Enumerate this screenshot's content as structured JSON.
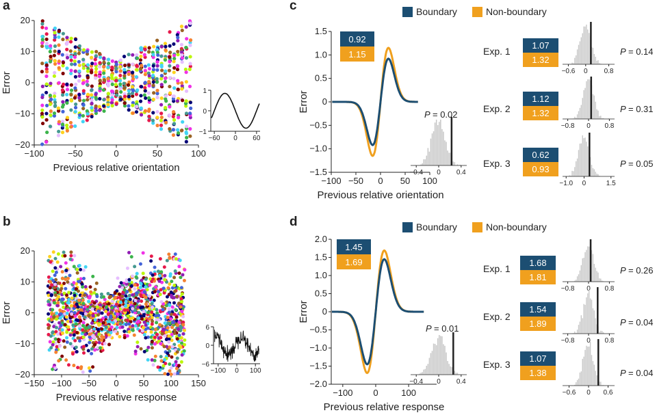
{
  "colors": {
    "boundary": "#1c4e72",
    "non_boundary": "#f0a01e",
    "hist": "#c8c8c8",
    "obs_line": "#222222",
    "scatter_palette": [
      "#e6194b",
      "#3cb44b",
      "#ffd21e",
      "#4363d8",
      "#f58231",
      "#911eb4",
      "#42d4f4",
      "#f032e6",
      "#9a6324",
      "#800000",
      "#469990",
      "#000075",
      "#bcf60c",
      "#e6beff"
    ]
  },
  "panels": {
    "a": {
      "letter": "a"
    },
    "b": {
      "letter": "b"
    },
    "c": {
      "letter": "c"
    },
    "d": {
      "letter": "d"
    }
  },
  "legend": {
    "boundary": "Boundary",
    "non_boundary": "Non-boundary"
  },
  "chart_data": [
    {
      "id": "a-scatter",
      "type": "scatter",
      "xlabel": "Previous relative orientation",
      "ylabel": "Error",
      "xlim": [
        -100,
        100
      ],
      "ylim": [
        -20,
        20
      ],
      "xticks": [
        -100,
        -50,
        0,
        50,
        100
      ],
      "yticks": [
        -20,
        -10,
        0,
        10,
        20
      ],
      "x_levels": [
        -90,
        -85,
        -80,
        -75,
        -70,
        -65,
        -60,
        -55,
        -50,
        -45,
        -40,
        -35,
        -30,
        -25,
        -20,
        -15,
        -10,
        -5,
        0,
        5,
        10,
        15,
        20,
        25,
        30,
        35,
        40,
        45,
        50,
        55,
        60,
        65,
        70,
        75,
        80,
        85,
        90
      ],
      "description_curve": "error band narrow near 0, wide near ±90"
    },
    {
      "id": "a-inset",
      "type": "line",
      "xlim": [
        -70,
        70
      ],
      "ylim": [
        -1,
        1
      ],
      "xticks": [
        -60,
        0,
        60
      ],
      "yticks": [
        -1,
        0,
        1
      ],
      "function": "-sin(2*pi*x/120)"
    },
    {
      "id": "b-scatter",
      "type": "scatter",
      "xlabel": "Previous relative response",
      "ylabel": "Error",
      "xlim": [
        -150,
        150
      ],
      "ylim": [
        -20,
        20
      ],
      "xticks": [
        -150,
        -100,
        -50,
        0,
        50,
        100,
        150
      ],
      "yticks": [
        -20,
        -10,
        0,
        10,
        20
      ]
    },
    {
      "id": "b-inset",
      "type": "line",
      "xlim": [
        -125,
        125
      ],
      "ylim": [
        -6,
        6
      ],
      "xticks": [
        -100,
        0,
        100
      ],
      "yticks": [
        -6,
        0,
        6
      ]
    },
    {
      "id": "c-main",
      "type": "line",
      "xlabel": "Previous relative orientation",
      "ylabel": "Error",
      "xlim": [
        -100,
        100
      ],
      "ylim": [
        -1.5,
        1.5
      ],
      "xticks": [
        -100,
        -50,
        0,
        50,
        100
      ],
      "yticks": [
        -1.5,
        -1.0,
        -0.5,
        0,
        0.5,
        1.0,
        1.5
      ],
      "ytick_labels": [
        "−1.5",
        "−1.0",
        "−0.5",
        "0",
        "0.5",
        "1.0",
        "1.5"
      ],
      "series": [
        {
          "name": "Non-boundary",
          "amplitude": 1.15,
          "peak_x": 16
        },
        {
          "name": "Boundary",
          "amplitude": 0.92,
          "peak_x": 16
        }
      ],
      "box": {
        "boundary": "0.92",
        "non_boundary": "1.15"
      },
      "hist": {
        "p_label": "P",
        "p_value": "= 0.02",
        "xticks": [
          "−0.4",
          "0",
          "0.4"
        ],
        "xlim": [
          -0.5,
          0.5
        ],
        "mean": 0.0,
        "sd": 0.12,
        "observed": 0.23
      }
    },
    {
      "id": "d-main",
      "type": "line",
      "xlabel": "Previous relative response",
      "ylabel": "Error",
      "xlim": [
        -135,
        185
      ],
      "ylim": [
        -2.0,
        2.0
      ],
      "xticks": [
        -100,
        0,
        100
      ],
      "yticks": [
        -2.0,
        -1.5,
        -1.0,
        -0.5,
        0,
        0.5,
        1.0,
        1.5,
        2.0
      ],
      "ytick_labels": [
        "−2.0",
        "−1.5",
        "−1.0",
        "−0.5",
        "0",
        "0.5",
        "1.0",
        "1.5",
        "2.0"
      ],
      "series": [
        {
          "name": "Non-boundary",
          "amplitude": 1.69,
          "peak_x": 26
        },
        {
          "name": "Boundary",
          "amplitude": 1.45,
          "peak_x": 26
        }
      ],
      "box": {
        "boundary": "1.45",
        "non_boundary": "1.69"
      },
      "hist": {
        "p_label": "P",
        "p_value": "= 0.01",
        "xticks": [
          "−0.4",
          "0",
          "0.4"
        ],
        "xlim": [
          -0.5,
          0.5
        ],
        "mean": 0.0,
        "sd": 0.12,
        "observed": 0.26
      }
    }
  ],
  "experiments": {
    "c": [
      {
        "label": "Exp. 1",
        "boundary": "1.07",
        "non_boundary": "1.32",
        "p_label": "P",
        "p_value": "= 0.14",
        "xticks": [
          "−0.6",
          "0",
          "0.8"
        ],
        "xlim": [
          -0.8,
          1.0
        ],
        "observed": 0.18
      },
      {
        "label": "Exp. 2",
        "boundary": "1.12",
        "non_boundary": "1.32",
        "p_label": "P",
        "p_value": "= 0.31",
        "xticks": [
          "−0.8",
          "0",
          "0.8"
        ],
        "xlim": [
          -1.0,
          1.0
        ],
        "observed": 0.1
      },
      {
        "label": "Exp. 3",
        "boundary": "0.62",
        "non_boundary": "0.93",
        "p_label": "P",
        "p_value": "= 0.05",
        "xticks": [
          "−1.0",
          "0",
          "1.5"
        ],
        "xlim": [
          -1.2,
          1.7
        ],
        "observed": 0.3
      }
    ],
    "d": [
      {
        "label": "Exp. 1",
        "boundary": "1.68",
        "non_boundary": "1.81",
        "p_label": "P",
        "p_value": "= 0.26",
        "xticks": [
          "−0.8",
          "0",
          "0.8"
        ],
        "xlim": [
          -1.0,
          1.0
        ],
        "observed": 0.08
      },
      {
        "label": "Exp. 2",
        "boundary": "1.54",
        "non_boundary": "1.89",
        "p_label": "P",
        "p_value": "= 0.04",
        "xticks": [
          "−0.8",
          "0",
          "0.8"
        ],
        "xlim": [
          -1.0,
          1.0
        ],
        "observed": 0.35
      },
      {
        "label": "Exp. 3",
        "boundary": "1.07",
        "non_boundary": "1.38",
        "p_label": "P",
        "p_value": "= 0.04",
        "xticks": [
          "−0.6",
          "0",
          "0.6"
        ],
        "xlim": [
          -0.8,
          0.8
        ],
        "observed": 0.3
      }
    ]
  }
}
